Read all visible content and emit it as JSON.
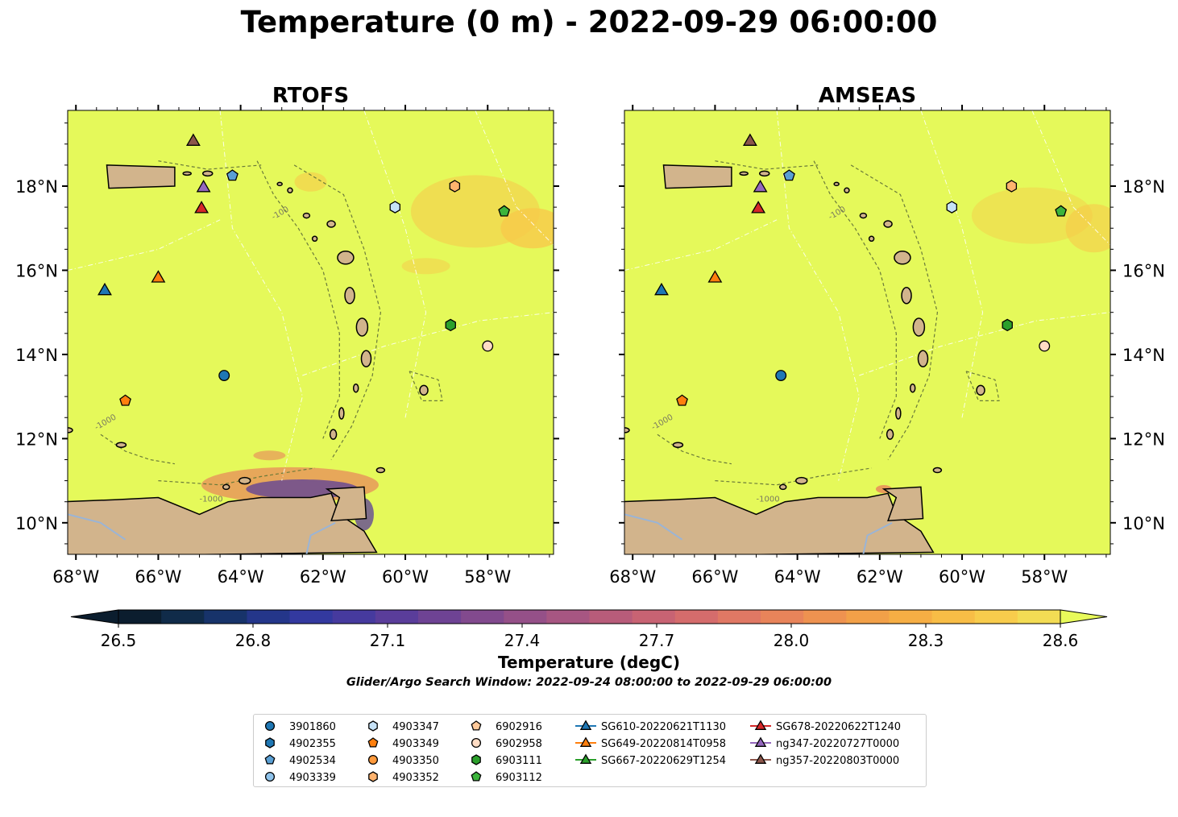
{
  "title": "Temperature (0 m) - 2022-09-29 06:00:00",
  "colors": {
    "land": "#d2b48c",
    "ocean_base": "#e5f95a",
    "warm_patch": "#f7c94a",
    "cool_patch": "#5a3d9a",
    "mid_patch": "#e8845a",
    "river": "#9ab4d6",
    "bathy": "#6b7b3a"
  },
  "chart_data": [
    {
      "type": "heatmap",
      "title": "RTOFS",
      "xlim": [
        -68.2,
        -56.4
      ],
      "ylim": [
        9.25,
        19.8
      ],
      "xticks": [
        -68,
        -66,
        -64,
        -62,
        -60,
        -58
      ],
      "xtick_labels": [
        "68°W",
        "66°W",
        "64°W",
        "62°W",
        "60°W",
        "58°W"
      ],
      "yticks": [
        10,
        12,
        14,
        16,
        18
      ],
      "ytick_labels": [
        "10°N",
        "12°N",
        "14°N",
        "16°N",
        "18°N"
      ],
      "ytick_side": "left",
      "bathymetry_contour_labels": [
        "-100",
        "-1000"
      ]
    },
    {
      "type": "heatmap",
      "title": "AMSEAS",
      "xlim": [
        -68.2,
        -56.4
      ],
      "ylim": [
        9.25,
        19.8
      ],
      "xticks": [
        -68,
        -66,
        -64,
        -62,
        -60,
        -58
      ],
      "xtick_labels": [
        "68°W",
        "66°W",
        "64°W",
        "62°W",
        "60°W",
        "58°W"
      ],
      "yticks": [
        10,
        12,
        14,
        16,
        18
      ],
      "ytick_labels": [
        "10°N",
        "12°N",
        "14°N",
        "16°N",
        "18°N"
      ],
      "ytick_side": "right",
      "bathymetry_contour_labels": [
        "-100",
        "-1000"
      ]
    }
  ],
  "markers": [
    {
      "label": "3901860",
      "shape": "circle",
      "color": "#1f77b4",
      "lon": -64.4,
      "lat": 13.5
    },
    {
      "label": "4902355",
      "shape": "hexagon",
      "color": "#1f77b4",
      "lon": null,
      "lat": null
    },
    {
      "label": "4902534",
      "shape": "pentagon",
      "color": "#5a9fd4",
      "lon": -64.2,
      "lat": 18.25
    },
    {
      "label": "4903339",
      "shape": "circle",
      "color": "#8fc3eb",
      "lon": null,
      "lat": null
    },
    {
      "label": "4903347",
      "shape": "hexagon",
      "color": "#c6e2f7",
      "lon": -60.25,
      "lat": 17.5
    },
    {
      "label": "4903349",
      "shape": "pentagon",
      "color": "#ff7f0e",
      "lon": -66.8,
      "lat": 12.9
    },
    {
      "label": "4903350",
      "shape": "circle",
      "color": "#ff9a3c",
      "lon": null,
      "lat": null
    },
    {
      "label": "4903352",
      "shape": "hexagon",
      "color": "#ffb36e",
      "lon": -58.8,
      "lat": 18.0
    },
    {
      "label": "6902916",
      "shape": "pentagon",
      "color": "#ffc99a",
      "lon": null,
      "lat": null
    },
    {
      "label": "6902958",
      "shape": "circle",
      "color": "#ffdcc4",
      "lon": -58.0,
      "lat": 14.2
    },
    {
      "label": "6903111",
      "shape": "hexagon",
      "color": "#2ca02c",
      "lon": -58.9,
      "lat": 14.7
    },
    {
      "label": "6903112",
      "shape": "pentagon",
      "color": "#3cb43c",
      "lon": -57.6,
      "lat": 17.4
    },
    {
      "label": "SG610-20220621T1130",
      "shape": "triangle",
      "color": "#1f77b4",
      "lon": -67.3,
      "lat": 15.55
    },
    {
      "label": "SG649-20220814T0958",
      "shape": "triangle",
      "color": "#ff7f0e",
      "lon": -66.0,
      "lat": 15.85
    },
    {
      "label": "SG667-20220629T1254",
      "shape": "triangle",
      "color": "#2ca02c",
      "lon": null,
      "lat": null
    },
    {
      "label": "SG678-20220622T1240",
      "shape": "triangle",
      "color": "#d62728",
      "lon": -64.95,
      "lat": 17.5
    },
    {
      "label": "ng347-20220727T0000",
      "shape": "triangle",
      "color": "#9467bd",
      "lon": -64.9,
      "lat": 18.0
    },
    {
      "label": "ng357-20220803T0000",
      "shape": "triangle",
      "color": "#8c564b",
      "lon": -65.15,
      "lat": 19.1
    }
  ],
  "colorbar": {
    "label": "Temperature (degC)",
    "min": 26.4,
    "max": 28.65,
    "tick_values": [
      26.5,
      26.8,
      27.1,
      27.4,
      27.7,
      28.0,
      28.3,
      28.6
    ],
    "tick_labels": [
      "26.5",
      "26.8",
      "27.1",
      "27.4",
      "27.7",
      "28.0",
      "28.3",
      "28.6"
    ],
    "extend": "both",
    "colors": [
      "#0b1d2e",
      "#102b49",
      "#17336a",
      "#24368a",
      "#33399f",
      "#463a9e",
      "#5a3d9a",
      "#6e4394",
      "#824a8e",
      "#955088",
      "#a75682",
      "#b85c7a",
      "#c86373",
      "#d56c6c",
      "#e07864",
      "#e8845a",
      "#ee9250",
      "#f2a048",
      "#f6ae44",
      "#f8bd46",
      "#f8cc4c",
      "#f3dc54"
    ],
    "end_color_high": "#e8fa5a"
  },
  "search_window": "Glider/Argo Search Window: 2022-09-24 08:00:00 to 2022-09-29 06:00:00"
}
